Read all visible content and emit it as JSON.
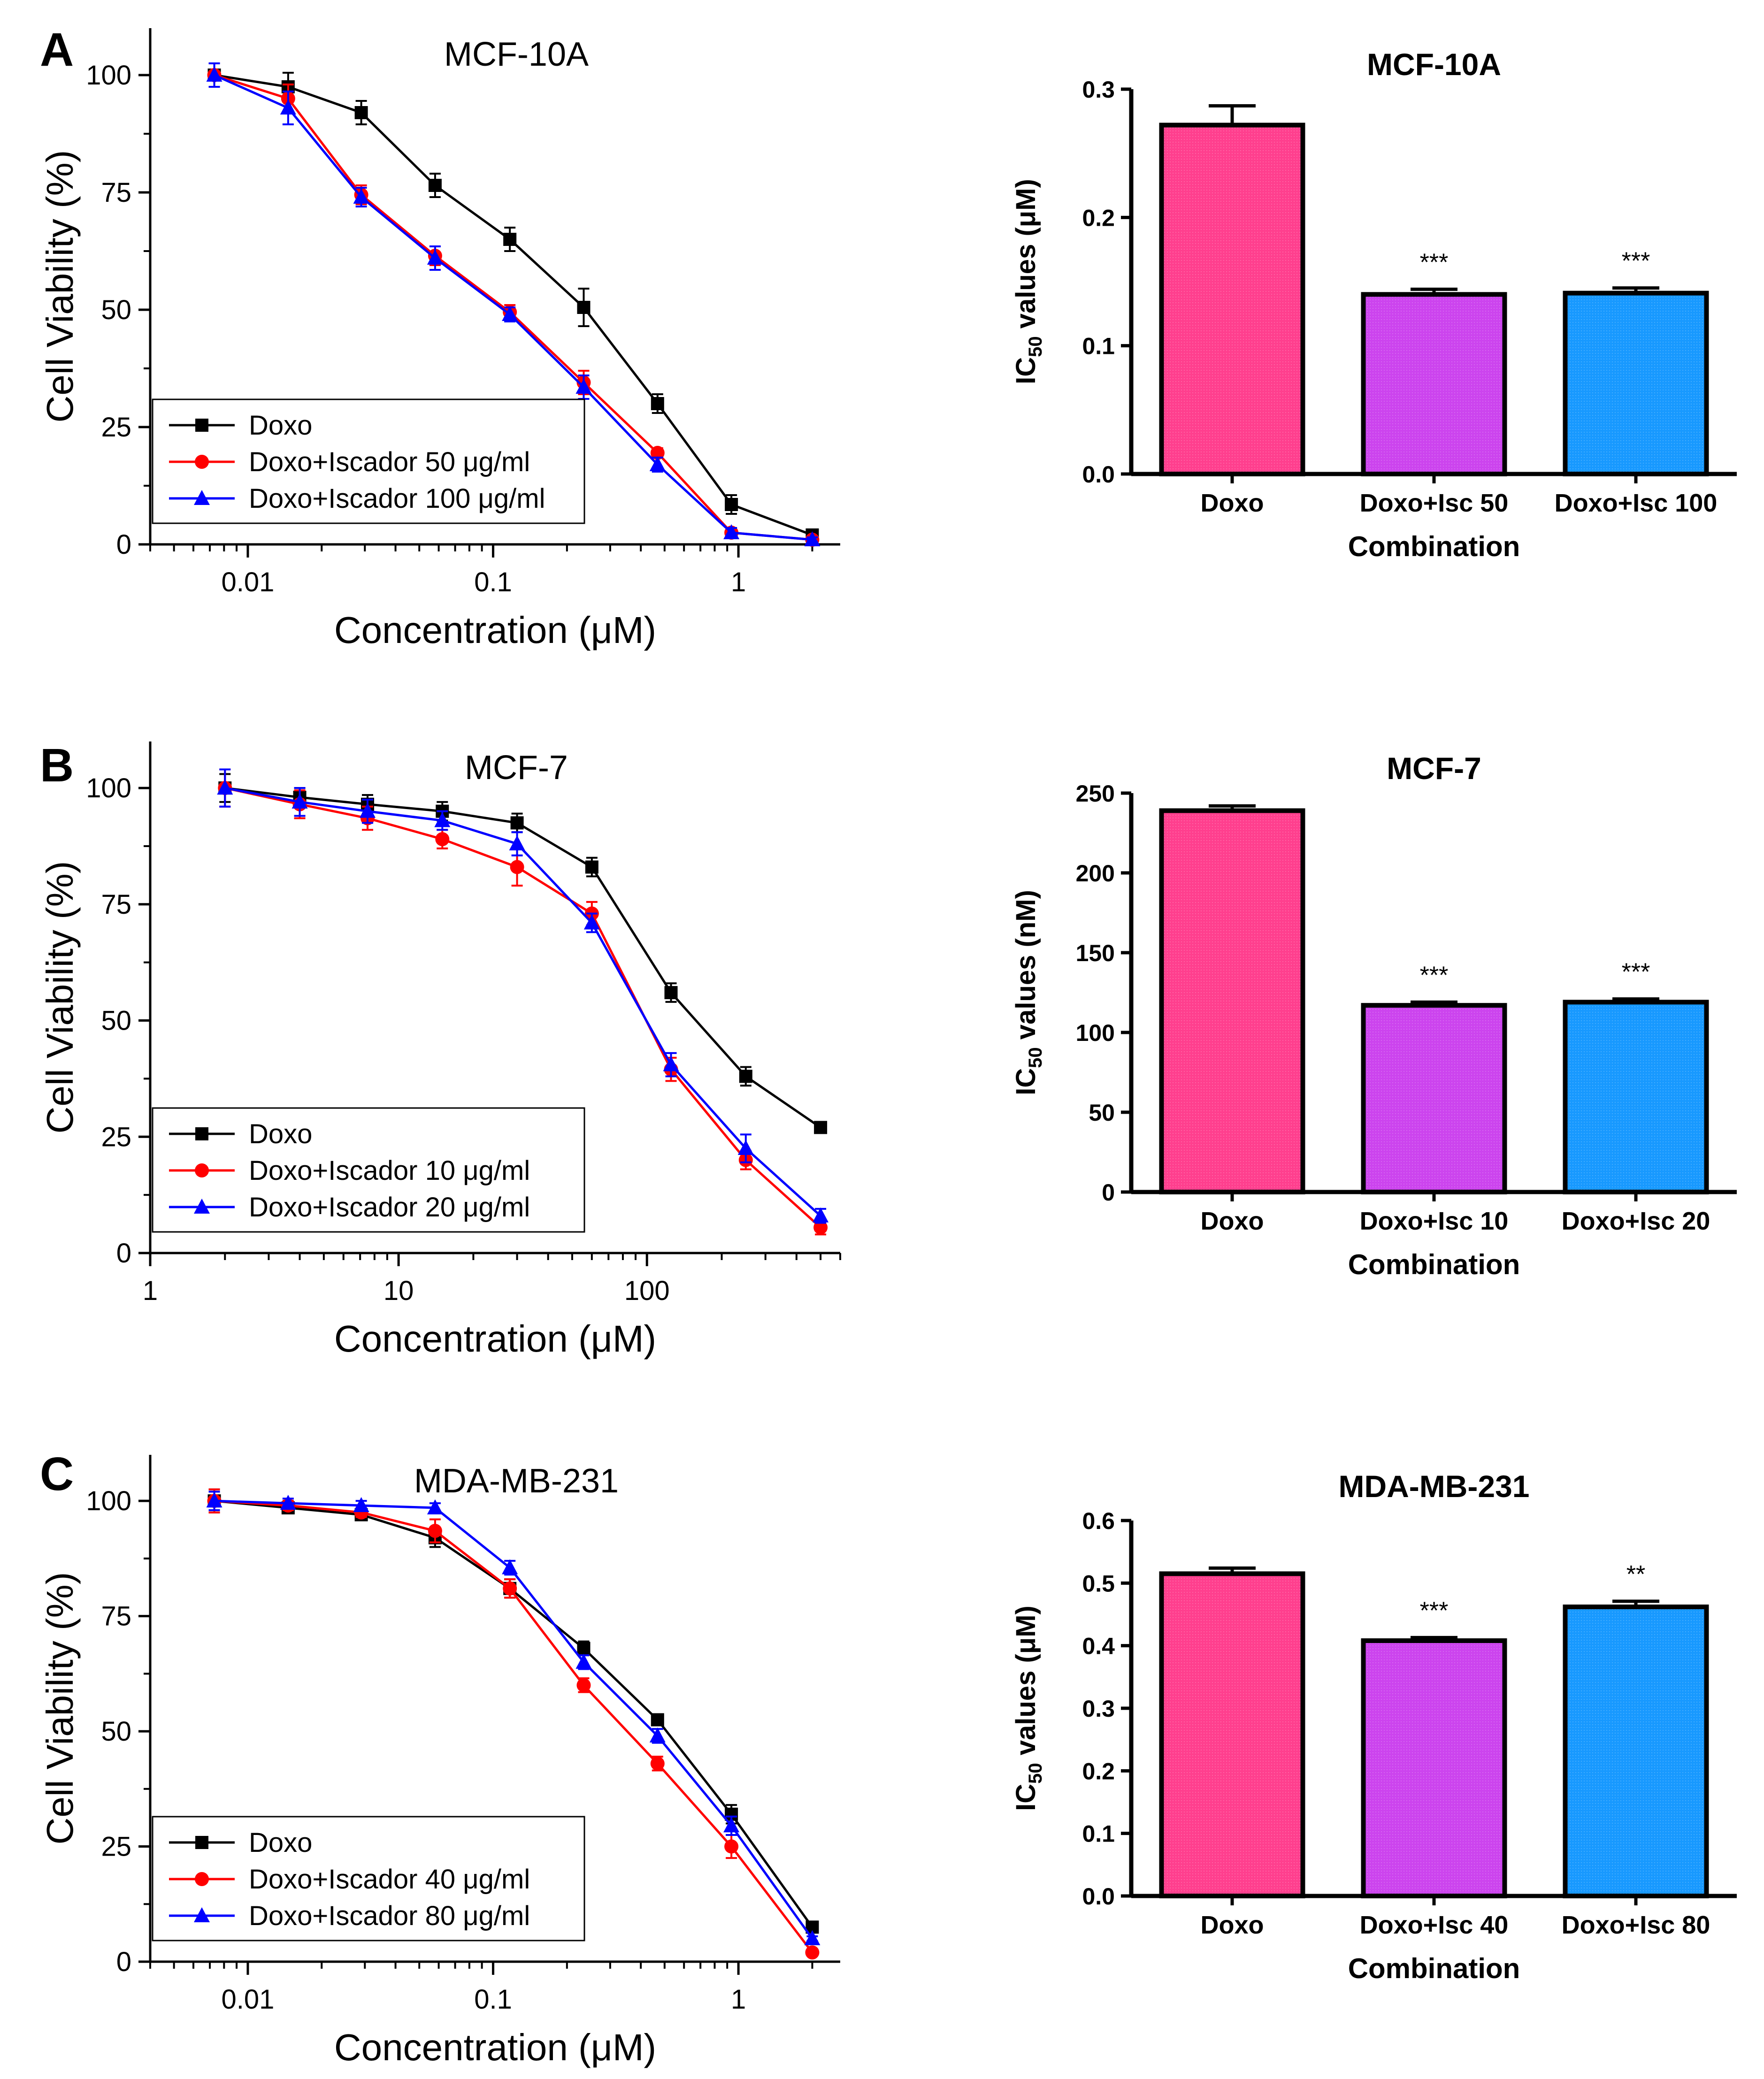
{
  "colors": {
    "doxo_line": "#000000",
    "combo1_line": "#ff0000",
    "combo2_line": "#0000ff",
    "bar_doxo": "#ff3f8e",
    "bar_combo1": "#cc44ee",
    "bar_combo2": "#1899ff"
  },
  "chart_data": [
    {
      "panel": "A",
      "type": "line",
      "title": "MCF-10A",
      "xlabel": "Concentration (μM)",
      "ylabel": "Cell Viability (%)",
      "x_scale": "log",
      "xlim": [
        0.004,
        2.6
      ],
      "ylim": [
        0,
        110
      ],
      "x_ticks": [
        0.01,
        0.1,
        1
      ],
      "x_tick_labels": [
        "0.01",
        "0.1",
        "1"
      ],
      "y_ticks": [
        0,
        25,
        50,
        75,
        100
      ],
      "y_tick_labels": [
        "0",
        "25",
        "50",
        "75",
        "100"
      ],
      "x": [
        0.0073,
        0.0146,
        0.029,
        0.058,
        0.117,
        0.234,
        0.468,
        0.936,
        2.0
      ],
      "series": [
        {
          "name": "Doxo",
          "marker": "square",
          "values": [
            100,
            97.5,
            92,
            76.5,
            65,
            50.5,
            30,
            8.5,
            2
          ],
          "errors": [
            2.5,
            3,
            2.5,
            2.5,
            2.5,
            4,
            2,
            2,
            1
          ]
        },
        {
          "name": "Doxo+Iscador 50 μg/ml",
          "marker": "circle",
          "values": [
            100,
            95,
            74.5,
            61.5,
            49.5,
            34.5,
            19.5,
            2.5,
            1
          ],
          "errors": [
            2.5,
            3,
            2,
            2,
            1.5,
            2.5,
            1,
            1,
            0.5
          ]
        },
        {
          "name": "Doxo+Iscador 100 μg/ml",
          "marker": "triangle",
          "values": [
            100,
            93,
            74,
            61,
            49,
            33.5,
            17,
            2.5,
            1
          ],
          "errors": [
            2.5,
            3.5,
            2,
            2.5,
            1.5,
            2.5,
            1.5,
            1,
            0.5
          ]
        }
      ],
      "legend_position": "bottom-left"
    },
    {
      "panel": "A",
      "type": "bar",
      "title": "MCF-10A",
      "xlabel": "Combination",
      "ylabel": "IC50 values (μM)",
      "ylabel_parts": [
        "IC",
        "50",
        " values (μM)"
      ],
      "ylim": [
        0,
        0.3
      ],
      "y_ticks": [
        0.0,
        0.1,
        0.2,
        0.3
      ],
      "y_tick_labels": [
        "0.0",
        "0.1",
        "0.2",
        "0.3"
      ],
      "categories": [
        "Doxo",
        "Doxo+Isc 50",
        "Doxo+Isc 100"
      ],
      "values": [
        0.272,
        0.14,
        0.141
      ],
      "errors": [
        0.015,
        0.004,
        0.004
      ],
      "significance": [
        "",
        "***",
        "***"
      ]
    },
    {
      "panel": "B",
      "type": "line",
      "title": "MCF-7",
      "xlabel": "Concentration (μM)",
      "ylabel": "Cell Viability (%)",
      "x_scale": "log",
      "xlim": [
        1,
        600
      ],
      "ylim": [
        0,
        110
      ],
      "x_ticks": [
        1,
        10,
        100
      ],
      "x_tick_labels": [
        "1",
        "10",
        "100"
      ],
      "y_ticks": [
        0,
        25,
        50,
        75,
        100
      ],
      "y_tick_labels": [
        "0",
        "25",
        "50",
        "75",
        "100"
      ],
      "x": [
        2,
        4,
        7.5,
        15,
        30,
        60,
        125,
        250,
        500
      ],
      "series": [
        {
          "name": "Doxo",
          "marker": "square",
          "values": [
            100,
            98,
            96.5,
            95,
            92.5,
            83,
            56,
            38,
            27
          ],
          "errors": [
            3,
            2,
            2,
            2,
            2,
            2,
            2,
            2,
            1
          ]
        },
        {
          "name": "Doxo+Iscador 10 μg/ml",
          "marker": "circle",
          "values": [
            100,
            96.5,
            93.5,
            89,
            83,
            73,
            39.5,
            20,
            5.5
          ],
          "errors": [
            4,
            3,
            2.5,
            2,
            4,
            2.5,
            2.5,
            2,
            1.5
          ]
        },
        {
          "name": "Doxo+Iscador 20 μg/ml",
          "marker": "triangle",
          "values": [
            100,
            97,
            95,
            93,
            88,
            71,
            40.5,
            22.5,
            8
          ],
          "errors": [
            4,
            3,
            2.5,
            2,
            2.5,
            2,
            2.5,
            3,
            1.5
          ]
        }
      ],
      "legend_position": "bottom-left"
    },
    {
      "panel": "B",
      "type": "bar",
      "title": "MCF-7",
      "xlabel": "Combination",
      "ylabel": "IC50 values (nM)",
      "ylabel_parts": [
        "IC",
        "50",
        " values (nM)"
      ],
      "ylim": [
        0,
        250
      ],
      "y_ticks": [
        0,
        50,
        100,
        150,
        200,
        250
      ],
      "y_tick_labels": [
        "0",
        "50",
        "100",
        "150",
        "200",
        "250"
      ],
      "categories": [
        "Doxo",
        "Doxo+Isc 10",
        "Doxo+Isc 20"
      ],
      "values": [
        239,
        117,
        119
      ],
      "errors": [
        3,
        2,
        2
      ],
      "significance": [
        "",
        "***",
        "***"
      ]
    },
    {
      "panel": "C",
      "type": "line",
      "title": "MDA-MB-231",
      "xlabel": "Concentration (μM)",
      "ylabel": "Cell Viability (%)",
      "x_scale": "log",
      "xlim": [
        0.004,
        2.6
      ],
      "ylim": [
        0,
        110
      ],
      "x_ticks": [
        0.01,
        0.1,
        1
      ],
      "x_tick_labels": [
        "0.01",
        "0.1",
        "1"
      ],
      "y_ticks": [
        0,
        25,
        50,
        75,
        100
      ],
      "y_tick_labels": [
        "0",
        "25",
        "50",
        "75",
        "100"
      ],
      "x": [
        0.0073,
        0.0146,
        0.029,
        0.058,
        0.117,
        0.234,
        0.468,
        0.936,
        2.0
      ],
      "series": [
        {
          "name": "Doxo",
          "marker": "square",
          "values": [
            100,
            98.5,
            97,
            92,
            81,
            68,
            52.5,
            32,
            7.5
          ],
          "errors": [
            2.5,
            1,
            1,
            2,
            2,
            1.5,
            1,
            2,
            1
          ]
        },
        {
          "name": "Doxo+Iscador 40 μg/ml",
          "marker": "circle",
          "values": [
            100,
            99,
            97.5,
            93.5,
            81,
            60,
            43,
            25,
            2
          ],
          "errors": [
            2.5,
            1,
            1,
            2.5,
            2,
            1.5,
            1.5,
            2.5,
            0.5
          ]
        },
        {
          "name": "Doxo+Iscador 80 μg/ml",
          "marker": "triangle",
          "values": [
            100,
            99.5,
            99,
            98.5,
            85.5,
            65,
            49,
            29.5,
            5
          ],
          "errors": [
            2,
            1,
            1,
            1,
            1.5,
            1.5,
            1.5,
            2,
            0.5
          ]
        }
      ],
      "legend_position": "bottom-left"
    },
    {
      "panel": "C",
      "type": "bar",
      "title": "MDA-MB-231",
      "xlabel": "Combination",
      "ylabel": "IC50 values (μM)",
      "ylabel_parts": [
        "IC",
        "50",
        " values (μM)"
      ],
      "ylim": [
        0,
        0.6
      ],
      "y_ticks": [
        0.0,
        0.1,
        0.2,
        0.3,
        0.4,
        0.5,
        0.6
      ],
      "y_tick_labels": [
        "0.0",
        "0.1",
        "0.2",
        "0.3",
        "0.4",
        "0.5",
        "0.6"
      ],
      "categories": [
        "Doxo",
        "Doxo+Isc 40",
        "Doxo+Isc 80"
      ],
      "values": [
        0.515,
        0.408,
        0.462
      ],
      "errors": [
        0.009,
        0.005,
        0.009
      ],
      "significance": [
        "",
        "***",
        "**"
      ]
    }
  ]
}
